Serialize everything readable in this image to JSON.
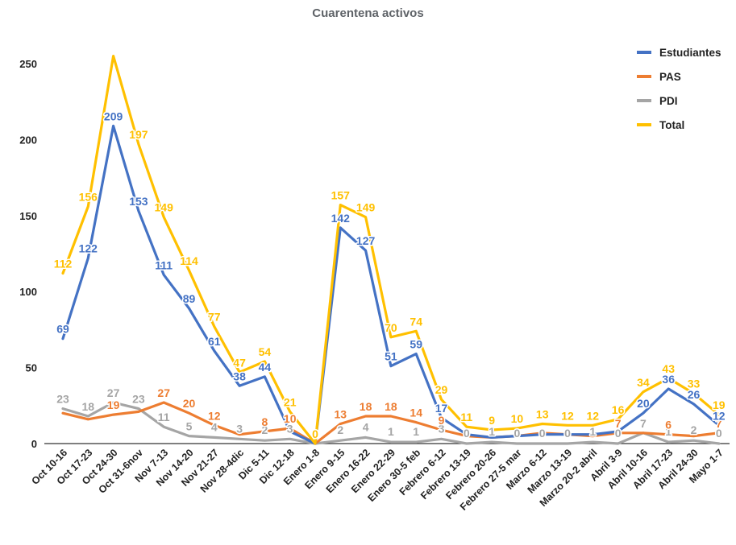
{
  "chart_data": {
    "type": "line",
    "title": "Cuarentena activos",
    "xlabel": "",
    "ylabel": "",
    "ylim": [
      0,
      260
    ],
    "yticks": [
      0,
      50,
      100,
      150,
      200,
      250
    ],
    "grid": false,
    "legend_position": "top-right",
    "categories": [
      "Oct 10-16",
      "Oct 17-23",
      "Oct 24-30",
      "Oct 31-6nov",
      "Nov 7-13",
      "Nov 14-20",
      "Nov 21-27",
      "Nov 28-4dic",
      "Dic 5-11",
      "Dic 12-18",
      "Enero 1-8",
      "Enero 9-15",
      "Enero 16-22",
      "Enero 22-29",
      "Enero 30-5 feb",
      "Febrero 6-12",
      "Febrero 13-19",
      "Febrero 20-26",
      "Febrero 27-5 mar",
      "Marzo 6-12",
      "Marzo 13-19",
      "Marzo 20-2 abril",
      "Abril 3-9",
      "Abril 10-16",
      "Abril 17-23",
      "Abril 24-30",
      "Mayo 1-7"
    ],
    "series": [
      {
        "name": "Estudiantes",
        "color": "#4472c4",
        "values": [
          69,
          122,
          209,
          153,
          111,
          89,
          61,
          38,
          44,
          8,
          0,
          142,
          127,
          51,
          59,
          17,
          6,
          4,
          5,
          6,
          6,
          6,
          8,
          20,
          36,
          26,
          12
        ],
        "labels": [
          "69",
          "122",
          "209",
          "153",
          "111",
          "89",
          "61",
          "38",
          "44",
          "",
          "",
          "142",
          "127",
          "51",
          "59",
          "17",
          "",
          "",
          "",
          "",
          "",
          "",
          "",
          "20",
          "36",
          "26",
          "12"
        ]
      },
      {
        "name": "PAS",
        "color": "#ed7d31",
        "values": [
          20,
          16,
          19,
          21,
          27,
          20,
          12,
          6,
          8,
          10,
          0,
          13,
          18,
          18,
          14,
          9,
          5,
          4,
          5,
          7,
          6,
          5,
          7,
          7,
          6,
          5,
          7
        ],
        "labels": [
          "",
          "",
          "19",
          "",
          "27",
          "20",
          "12",
          "",
          "8",
          "10",
          "",
          "13",
          "18",
          "18",
          "14",
          "9",
          "",
          "",
          "",
          "",
          "",
          "",
          "7",
          "",
          "6",
          "",
          "7"
        ]
      },
      {
        "name": "PDI",
        "color": "#a5a5a5",
        "values": [
          23,
          18,
          27,
          23,
          11,
          5,
          4,
          3,
          2,
          3,
          0,
          2,
          4,
          1,
          1,
          3,
          0,
          1,
          0,
          0,
          0,
          1,
          0,
          7,
          1,
          2,
          0
        ],
        "labels": [
          "23",
          "18",
          "27",
          "23",
          "11",
          "5",
          "4",
          "3",
          "2",
          "3",
          "",
          "2",
          "4",
          "1",
          "1",
          "3",
          "0",
          "1",
          "0",
          "0",
          "0",
          "1",
          "0",
          "7",
          "1",
          "2",
          "0"
        ]
      },
      {
        "name": "Total",
        "color": "#ffc000",
        "values": [
          112,
          156,
          255,
          197,
          149,
          114,
          77,
          47,
          54,
          21,
          0,
          157,
          149,
          70,
          74,
          29,
          11,
          9,
          10,
          13,
          12,
          12,
          16,
          34,
          43,
          33,
          19
        ],
        "labels": [
          "112",
          "156",
          "",
          "197",
          "149",
          "114",
          "77",
          "47",
          "54",
          "21",
          "0",
          "157",
          "149",
          "70",
          "74",
          "29",
          "11",
          "9",
          "10",
          "13",
          "12",
          "12",
          "16",
          "34",
          "43",
          "33",
          "19"
        ]
      }
    ]
  }
}
